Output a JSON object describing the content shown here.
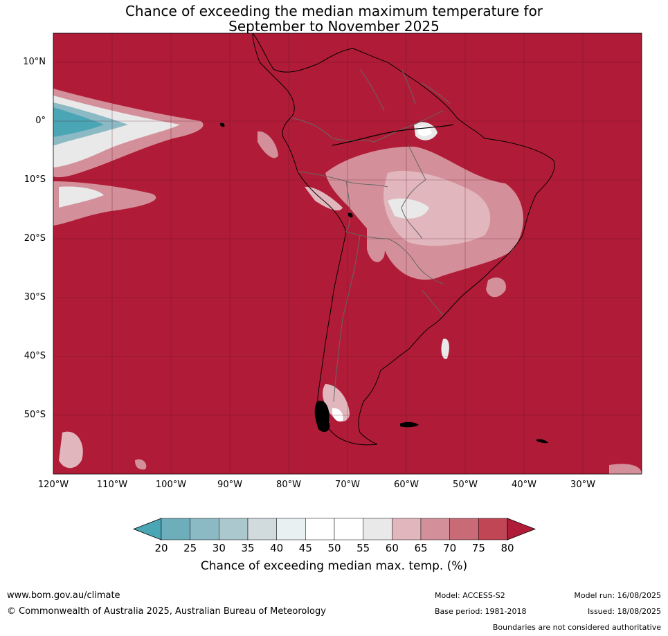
{
  "title_line1": "Chance of exceeding the median maximum temperature for",
  "title_line2": "September to November 2025",
  "lat_labels": [
    "10°N",
    "0°",
    "10°S",
    "20°S",
    "30°S",
    "40°S",
    "50°S"
  ],
  "lon_labels": [
    "120°W",
    "110°W",
    "100°W",
    "90°W",
    "80°W",
    "70°W",
    "60°W",
    "50°W",
    "40°W",
    "30°W"
  ],
  "colorbar": {
    "labels": [
      "20",
      "25",
      "30",
      "35",
      "40",
      "45",
      "50",
      "55",
      "60",
      "65",
      "70",
      "75",
      "80"
    ],
    "colors": [
      "#4aa5b5",
      "#6eaebb",
      "#8bb9c4",
      "#aac8cd",
      "#d1dadd",
      "#e9f0f2",
      "#ffffff",
      "#ffffff",
      "#e9e9e9",
      "#e2b6bd",
      "#d4909a",
      "#c96b77",
      "#c04656",
      "#b01c37"
    ],
    "title": "Chance of exceeding median max. temp. (%)"
  },
  "map_colors": {
    "background": "#b01c37",
    "c75": "#c04656",
    "c70": "#c96b77",
    "c65": "#d4909a",
    "c60": "#e2b6bd",
    "c55": "#e9e9e9",
    "c50": "#ffffff",
    "c40": "#d1dadd",
    "c30": "#8bb9c4",
    "c20": "#4aa5b5"
  },
  "footer": {
    "website": "www.bom.gov.au/climate",
    "copyright": "© Commonwealth of Australia 2025, Australian Bureau of Meteorology",
    "model": "Model: ACCESS-S2",
    "base_period": "Base period: 1981-2018",
    "model_run": "Model run: 16/08/2025",
    "issued": "Issued: 18/08/2025",
    "disclaimer": "Boundaries are not considered authoritative"
  }
}
